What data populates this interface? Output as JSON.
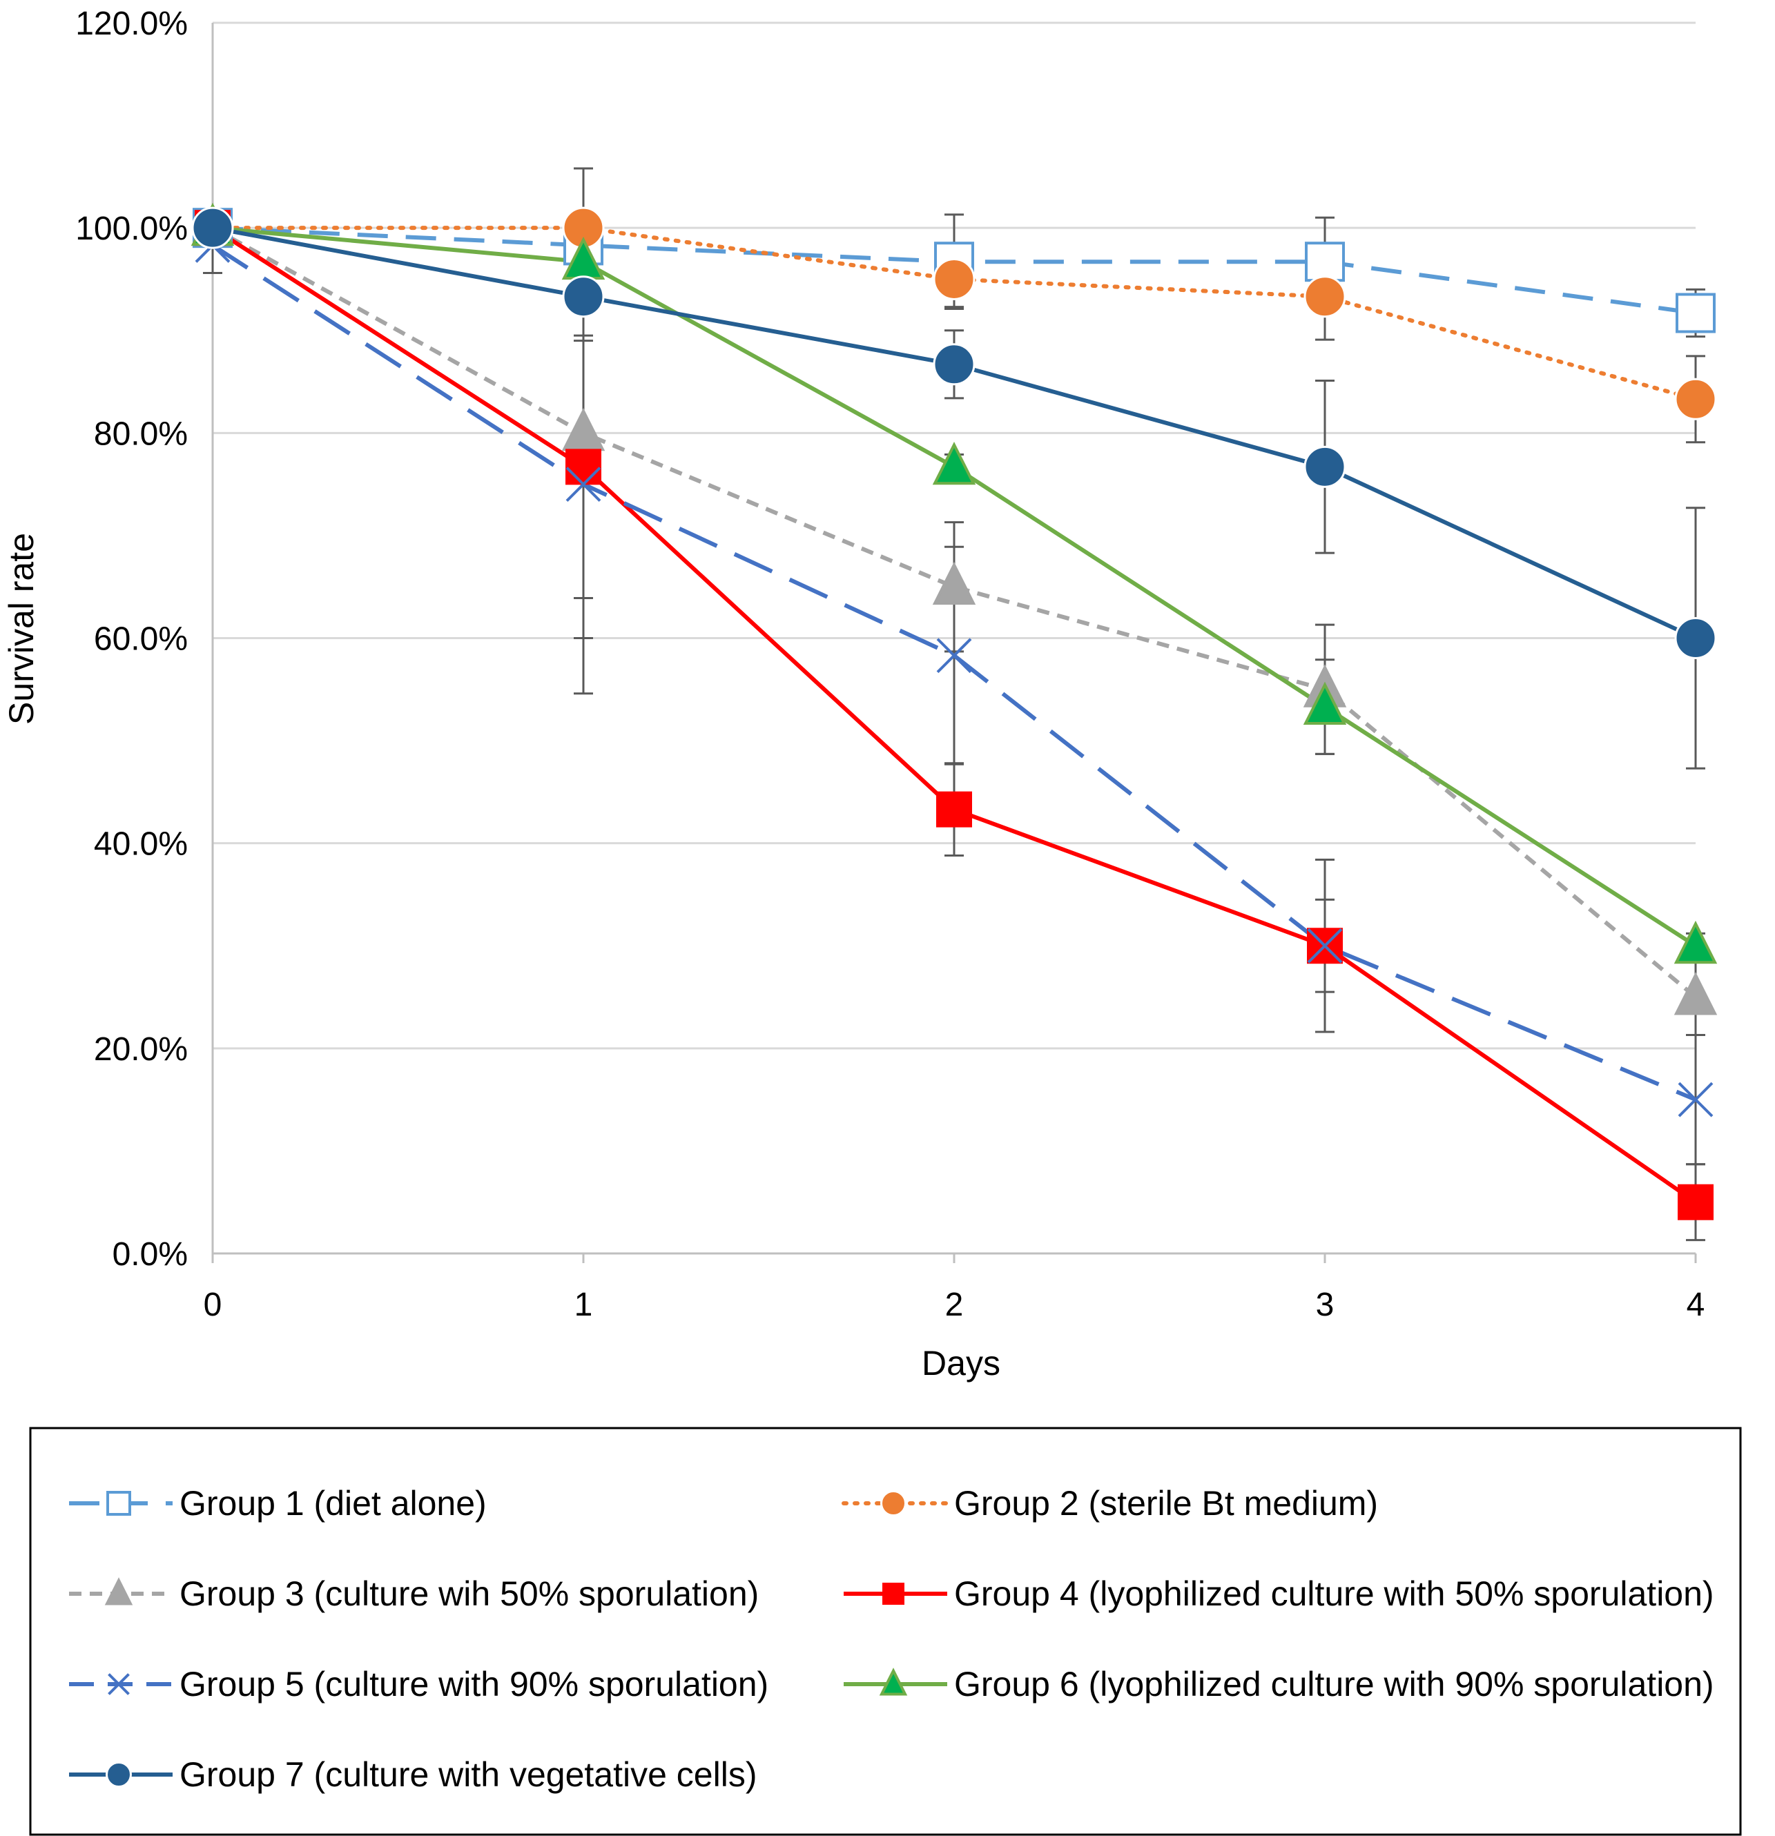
{
  "chart_data": {
    "type": "line",
    "title": "",
    "xlabel": "Days",
    "ylabel": "Survival rate",
    "x": [
      0,
      1,
      2,
      3,
      4
    ],
    "x_tick_labels": [
      "0",
      "1",
      "2",
      "3",
      "4"
    ],
    "ylim": [
      0,
      120
    ],
    "y_ticks": [
      0,
      20,
      40,
      60,
      80,
      100,
      120
    ],
    "y_tick_labels": [
      "0.0%",
      "20.0%",
      "40.0%",
      "60.0%",
      "80.0%",
      "100.0%",
      "120.0%"
    ],
    "grid": "horizontal",
    "legend_position": "bottom",
    "series": [
      {
        "name": "Group 1 (diet alone)",
        "values": [
          100,
          98.3,
          96.7,
          96.7,
          91.7
        ],
        "error": [
          null,
          null,
          4.6,
          4.3,
          2.3
        ],
        "color": "#5b9bd5",
        "line": "dashed",
        "marker": "open-square"
      },
      {
        "name": "Group 2 (sterile Bt medium)",
        "values": [
          100,
          100,
          95,
          93.3,
          83.3
        ],
        "error": [
          null,
          5.8,
          2.7,
          4.2,
          4.2
        ],
        "color": "#ed7d31",
        "line": "dotted",
        "marker": "circle"
      },
      {
        "name": "Group 3 (culture wih 50% sporulation)",
        "values": [
          100,
          80,
          65,
          55,
          25
        ],
        "error": [
          null,
          20,
          6.3,
          6.3,
          3.7
        ],
        "color": "#a5a5a5",
        "line": "short-dash",
        "marker": "triangle"
      },
      {
        "name": "Group 4 (lyophilized culture with 50% sporulation)",
        "values": [
          100,
          76.7,
          43.3,
          30,
          5
        ],
        "error": [
          null,
          12.8,
          4.5,
          4.5,
          3.7
        ],
        "color": "#ff0000",
        "line": "solid",
        "marker": "square"
      },
      {
        "name": "Group 5 (culture with 90% sporulation)",
        "values": [
          98.3,
          75,
          58.3,
          30,
          15
        ],
        "error": [
          2.7,
          20.4,
          10.6,
          8.4,
          6.3
        ],
        "color": "#4472c4",
        "line": "long-dash",
        "marker": "x"
      },
      {
        "name": "Group 6 (lyophilized culture with 90% sporulation)",
        "values": [
          100,
          96.7,
          76.7,
          53.3,
          30
        ],
        "error": [
          null,
          4.6,
          1.2,
          4.6,
          1.2
        ],
        "color": "#70ad47",
        "line": "solid",
        "marker": "triangle"
      },
      {
        "name": "Group 7 (culture with vegetative cells)",
        "values": [
          100,
          93.3,
          86.7,
          76.7,
          60
        ],
        "error": [
          null,
          4.3,
          3.3,
          8.4,
          12.7
        ],
        "color": "#255e91",
        "line": "solid",
        "marker": "circle"
      }
    ]
  }
}
